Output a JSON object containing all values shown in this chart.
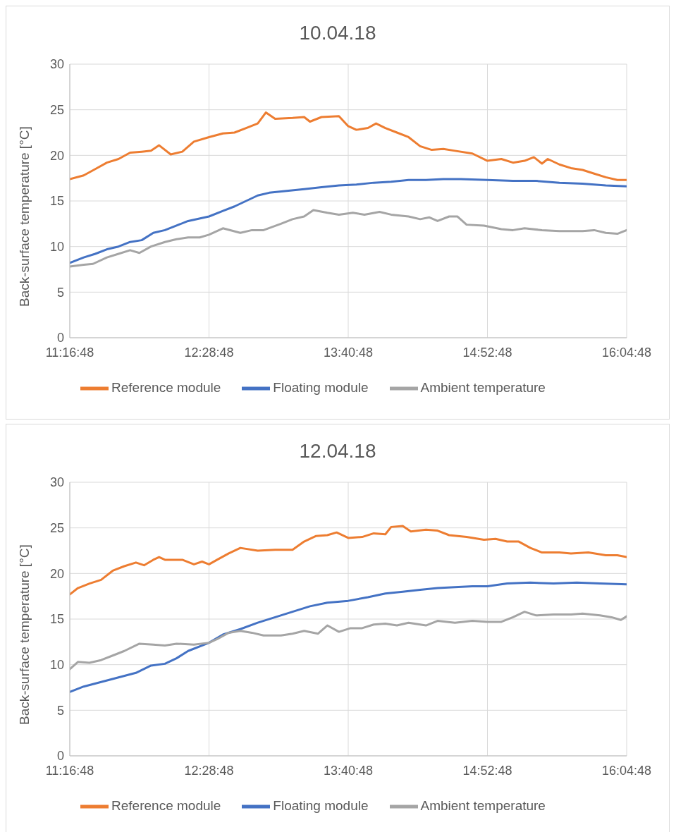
{
  "chart_data": [
    {
      "type": "line",
      "title": "10.04.18",
      "ylabel": "Back-surface temperature [°C]",
      "legend": "bottom",
      "grid": true,
      "ylim": [
        0,
        30
      ],
      "yticks": [
        0,
        5,
        10,
        15,
        20,
        25,
        30
      ],
      "xlim": [
        11.28,
        16.08
      ],
      "xticks": [
        {
          "value": 11.28,
          "label": "11:16:48"
        },
        {
          "value": 12.48,
          "label": "12:28:48"
        },
        {
          "value": 13.68,
          "label": "13:40:48"
        },
        {
          "value": 14.88,
          "label": "14:52:48"
        },
        {
          "value": 16.08,
          "label": "16:04:48"
        }
      ],
      "series": [
        {
          "name": "Reference module",
          "color": "#ed7d31",
          "x": [
            11.28,
            11.4,
            11.5,
            11.6,
            11.7,
            11.8,
            11.9,
            11.98,
            12.05,
            12.15,
            12.25,
            12.35,
            12.48,
            12.6,
            12.7,
            12.8,
            12.9,
            12.97,
            13.05,
            13.2,
            13.3,
            13.35,
            13.45,
            13.6,
            13.68,
            13.75,
            13.85,
            13.92,
            14.0,
            14.1,
            14.2,
            14.3,
            14.4,
            14.5,
            14.6,
            14.75,
            14.88,
            15.0,
            15.1,
            15.2,
            15.28,
            15.35,
            15.4,
            15.5,
            15.6,
            15.7,
            15.8,
            15.9,
            16.0,
            16.08
          ],
          "values": [
            17.4,
            17.8,
            18.5,
            19.2,
            19.6,
            20.3,
            20.4,
            20.5,
            21.1,
            20.1,
            20.4,
            21.5,
            22.0,
            22.4,
            22.5,
            23.0,
            23.5,
            24.7,
            24.0,
            24.1,
            24.2,
            23.7,
            24.2,
            24.3,
            23.2,
            22.8,
            23.0,
            23.5,
            23.0,
            22.5,
            22.0,
            21.0,
            20.6,
            20.7,
            20.5,
            20.2,
            19.4,
            19.6,
            19.2,
            19.4,
            19.8,
            19.1,
            19.6,
            19.0,
            18.6,
            18.4,
            18.0,
            17.6,
            17.3,
            17.3
          ]
        },
        {
          "name": "Floating module",
          "color": "#4472c4",
          "x": [
            11.28,
            11.4,
            11.5,
            11.6,
            11.7,
            11.8,
            11.9,
            12.0,
            12.1,
            12.2,
            12.3,
            12.48,
            12.6,
            12.7,
            12.8,
            12.9,
            13.0,
            13.15,
            13.3,
            13.45,
            13.6,
            13.75,
            13.9,
            14.05,
            14.2,
            14.35,
            14.5,
            14.65,
            14.88,
            15.1,
            15.3,
            15.5,
            15.7,
            15.9,
            16.08
          ],
          "values": [
            8.2,
            8.8,
            9.2,
            9.7,
            10.0,
            10.5,
            10.7,
            11.5,
            11.8,
            12.3,
            12.8,
            13.3,
            13.9,
            14.4,
            15.0,
            15.6,
            15.9,
            16.1,
            16.3,
            16.5,
            16.7,
            16.8,
            17.0,
            17.1,
            17.3,
            17.3,
            17.4,
            17.4,
            17.3,
            17.2,
            17.2,
            17.0,
            16.9,
            16.7,
            16.6
          ]
        },
        {
          "name": "Ambient temperature",
          "color": "#a5a5a5",
          "x": [
            11.28,
            11.4,
            11.48,
            11.6,
            11.7,
            11.8,
            11.88,
            11.98,
            12.1,
            12.2,
            12.3,
            12.4,
            12.48,
            12.6,
            12.75,
            12.85,
            12.95,
            13.1,
            13.2,
            13.3,
            13.38,
            13.5,
            13.6,
            13.72,
            13.82,
            13.95,
            14.05,
            14.2,
            14.3,
            14.38,
            14.45,
            14.55,
            14.62,
            14.7,
            14.85,
            15.0,
            15.1,
            15.2,
            15.35,
            15.5,
            15.7,
            15.8,
            15.9,
            16.0,
            16.08
          ],
          "values": [
            7.8,
            8.0,
            8.1,
            8.8,
            9.2,
            9.6,
            9.3,
            10.0,
            10.5,
            10.8,
            11.0,
            11.0,
            11.3,
            12.0,
            11.5,
            11.8,
            11.8,
            12.5,
            13.0,
            13.3,
            14.0,
            13.7,
            13.5,
            13.7,
            13.5,
            13.8,
            13.5,
            13.3,
            13.0,
            13.2,
            12.8,
            13.3,
            13.3,
            12.4,
            12.3,
            11.9,
            11.8,
            12.0,
            11.8,
            11.7,
            11.7,
            11.8,
            11.5,
            11.4,
            11.8
          ]
        }
      ]
    },
    {
      "type": "line",
      "title": "12.04.18",
      "ylabel": "Back-surface temperature [°C]",
      "legend": "bottom",
      "grid": true,
      "ylim": [
        0,
        30
      ],
      "yticks": [
        0,
        5,
        10,
        15,
        20,
        25,
        30
      ],
      "xlim": [
        11.28,
        16.08
      ],
      "xticks": [
        {
          "value": 11.28,
          "label": "11:16:48"
        },
        {
          "value": 12.48,
          "label": "12:28:48"
        },
        {
          "value": 13.68,
          "label": "13:40:48"
        },
        {
          "value": 14.88,
          "label": "14:52:48"
        },
        {
          "value": 16.08,
          "label": "16:04:48"
        }
      ],
      "series": [
        {
          "name": "Reference module",
          "color": "#ed7d31",
          "x": [
            11.28,
            11.35,
            11.45,
            11.55,
            11.65,
            11.75,
            11.85,
            11.92,
            12.0,
            12.05,
            12.1,
            12.25,
            12.35,
            12.42,
            12.48,
            12.55,
            12.65,
            12.75,
            12.9,
            13.05,
            13.2,
            13.3,
            13.4,
            13.5,
            13.58,
            13.68,
            13.8,
            13.9,
            14.0,
            14.05,
            14.15,
            14.22,
            14.35,
            14.45,
            14.55,
            14.7,
            14.85,
            14.95,
            15.05,
            15.15,
            15.25,
            15.35,
            15.5,
            15.6,
            15.75,
            15.9,
            16.0,
            16.08
          ],
          "values": [
            17.7,
            18.4,
            18.9,
            19.3,
            20.3,
            20.8,
            21.2,
            20.9,
            21.5,
            21.8,
            21.5,
            21.5,
            21.0,
            21.3,
            21.0,
            21.5,
            22.2,
            22.8,
            22.5,
            22.6,
            22.6,
            23.5,
            24.1,
            24.2,
            24.5,
            23.9,
            24.0,
            24.4,
            24.3,
            25.1,
            25.2,
            24.6,
            24.8,
            24.7,
            24.2,
            24.0,
            23.7,
            23.8,
            23.5,
            23.5,
            22.8,
            22.3,
            22.3,
            22.2,
            22.3,
            22.0,
            22.0,
            21.8
          ]
        },
        {
          "name": "Floating module",
          "color": "#4472c4",
          "x": [
            11.28,
            11.4,
            11.55,
            11.7,
            11.85,
            11.98,
            12.1,
            12.2,
            12.3,
            12.48,
            12.6,
            12.75,
            12.9,
            13.05,
            13.2,
            13.35,
            13.5,
            13.68,
            13.85,
            14.0,
            14.15,
            14.3,
            14.45,
            14.6,
            14.75,
            14.88,
            15.05,
            15.25,
            15.45,
            15.65,
            15.85,
            16.08
          ],
          "values": [
            7.0,
            7.6,
            8.1,
            8.6,
            9.1,
            9.9,
            10.1,
            10.7,
            11.5,
            12.4,
            13.3,
            13.9,
            14.6,
            15.2,
            15.8,
            16.4,
            16.8,
            17.0,
            17.4,
            17.8,
            18.0,
            18.2,
            18.4,
            18.5,
            18.6,
            18.6,
            18.9,
            19.0,
            18.9,
            19.0,
            18.9,
            18.8
          ]
        },
        {
          "name": "Ambient temperature",
          "color": "#a5a5a5",
          "x": [
            11.28,
            11.35,
            11.45,
            11.55,
            11.65,
            11.75,
            11.88,
            12.0,
            12.1,
            12.2,
            12.35,
            12.48,
            12.55,
            12.65,
            12.75,
            12.85,
            12.95,
            13.1,
            13.2,
            13.3,
            13.42,
            13.5,
            13.6,
            13.7,
            13.8,
            13.9,
            14.0,
            14.1,
            14.2,
            14.35,
            14.45,
            14.6,
            14.75,
            14.88,
            15.0,
            15.1,
            15.2,
            15.3,
            15.45,
            15.6,
            15.7,
            15.85,
            15.95,
            16.03,
            16.08
          ],
          "values": [
            9.5,
            10.3,
            10.2,
            10.5,
            11.0,
            11.5,
            12.3,
            12.2,
            12.1,
            12.3,
            12.2,
            12.4,
            12.8,
            13.5,
            13.7,
            13.5,
            13.2,
            13.2,
            13.4,
            13.7,
            13.4,
            14.3,
            13.6,
            14.0,
            14.0,
            14.4,
            14.5,
            14.3,
            14.6,
            14.3,
            14.8,
            14.6,
            14.8,
            14.7,
            14.7,
            15.2,
            15.8,
            15.4,
            15.5,
            15.5,
            15.6,
            15.4,
            15.2,
            14.9,
            15.3
          ]
        }
      ]
    }
  ]
}
